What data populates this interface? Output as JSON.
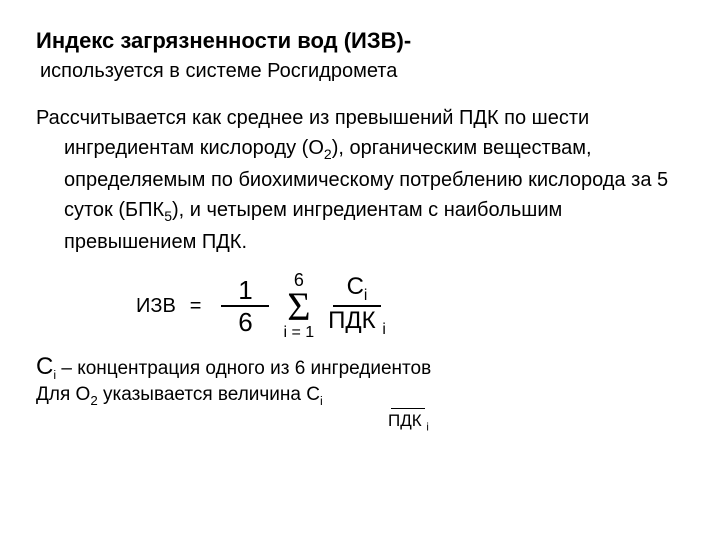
{
  "title": "Индекс загрязненности вод (ИЗВ)-",
  "subtitle": "используется в системе Росгидромета",
  "para_l1": "Рассчитывается как среднее из превышений ПДК по шести",
  "para_l2a": "ингредиентам кислороду (О",
  "para_l2_sub": "2",
  "para_l2b": "), органическим веществам,",
  "para_l3": "определяемым по биохимическому потреблению кислорода за 5",
  "para_l4a": "суток (БПК",
  "para_l4_sub": "5",
  "para_l4b": "), и четырем ингредиентам с наибольшим",
  "para_l5": "превышением ПДК.",
  "formula": {
    "label": "ИЗВ",
    "eq": "=",
    "frac1_num": "1",
    "frac1_den": "6",
    "sigma_upper": "6",
    "sigma": "Σ",
    "sigma_lower": "i = 1",
    "frac2_num_c": "С",
    "frac2_num_sub": "i",
    "frac2_den_main": "ПДК",
    "frac2_den_sub": "i"
  },
  "note1_c": "С",
  "note1_sub": "i",
  "note1_rest": " – концентрация одного из 6 ингредиентов",
  "note2_a": "Для О",
  "note2_sub": "2",
  "note2_b": " указывается величина С",
  "note2_sub2": "i",
  "mini_den_main": "ПДК",
  "mini_den_sub": "i"
}
